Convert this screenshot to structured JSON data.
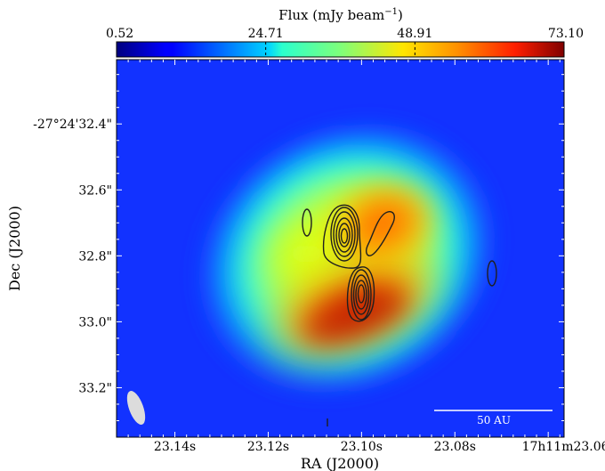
{
  "chart_data": {
    "type": "heatmap",
    "title": "",
    "colorbar": {
      "label": "Flux (mJy beam",
      "label_sup": "−1",
      "label_close": ")",
      "ticks": [
        "0.52",
        "24.71",
        "48.91",
        "73.10"
      ],
      "tick_values": [
        0.52,
        24.71,
        48.91,
        73.1
      ],
      "range": [
        0.52,
        73.1
      ],
      "colormap": "jet",
      "location": "top"
    },
    "xlabel": "RA (J2000)",
    "ylabel": "Dec (J2000)",
    "x_ticks": [
      "23.14s",
      "23.12s",
      "23.10s",
      "23.08s",
      "17h11m23.06s"
    ],
    "x_tick_values": [
      23.14,
      23.12,
      23.1,
      23.08,
      23.06
    ],
    "x_range": [
      23.1525,
      23.0566
    ],
    "x_direction": "RA increases to the left",
    "y_ticks": [
      "-27°24'32.4\"",
      "32.6\"",
      "32.8\"",
      "33.0\"",
      "33.2\""
    ],
    "y_tick_values": [
      32.4,
      32.6,
      32.8,
      33.0,
      33.2
    ],
    "y_range": [
      32.205,
      33.35
    ],
    "y_direction": "Dec offset (arcsec) increases downward",
    "scalebar_label": "50 AU",
    "colors": {
      "low": "#1a3cff",
      "background": "#0a28ff",
      "peak": "#9e0000",
      "contours": "#1f1f1f",
      "scalebar": "#ffffff",
      "beam": "#dcdcdc"
    },
    "image_features": "Ring-like dust continuum emission with a crescent of maximum flux toward the south-east and a secondary bright arc toward the north; black contours mark two compact sources near the centre."
  }
}
